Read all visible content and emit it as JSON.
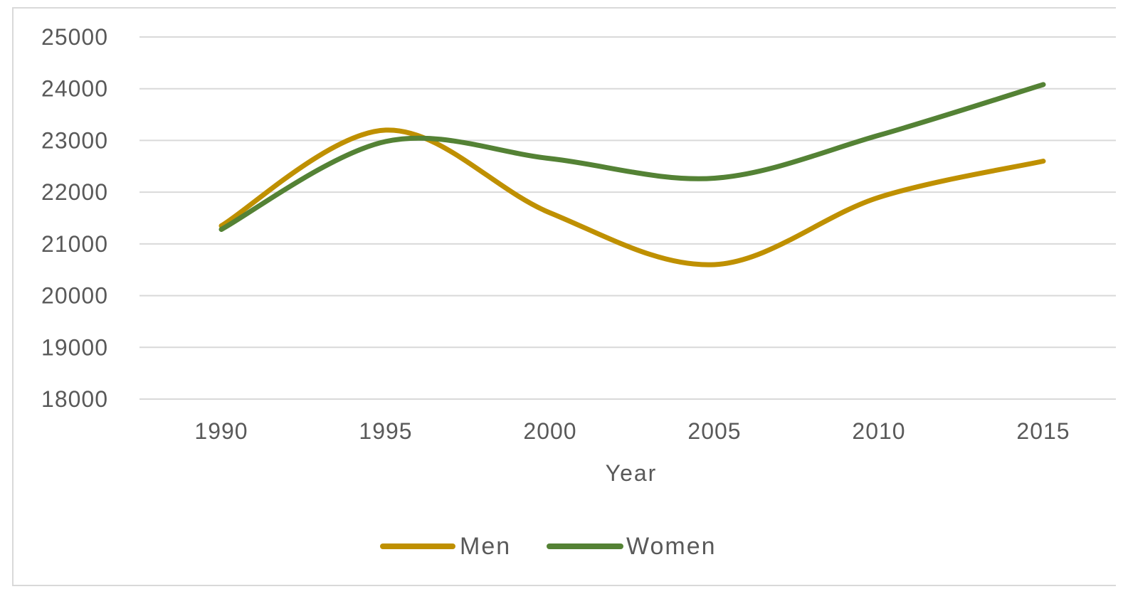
{
  "chart_data": {
    "type": "line",
    "title": "",
    "xlabel": "Year",
    "ylabel": "",
    "x": [
      "1990",
      "1995",
      "2000",
      "2005",
      "2010",
      "2015"
    ],
    "ylim": [
      18000,
      25000
    ],
    "yticks": [
      18000,
      19000,
      20000,
      21000,
      22000,
      23000,
      24000,
      25000
    ],
    "grid": true,
    "smooth": true,
    "legend_position": "bottom",
    "series": [
      {
        "name": "Men",
        "color": "#bf9000",
        "values": [
          21350,
          23200,
          21600,
          20600,
          21900,
          22600
        ]
      },
      {
        "name": "Women",
        "color": "#548235",
        "values": [
          21280,
          22980,
          22650,
          22270,
          23100,
          24080
        ]
      }
    ]
  }
}
